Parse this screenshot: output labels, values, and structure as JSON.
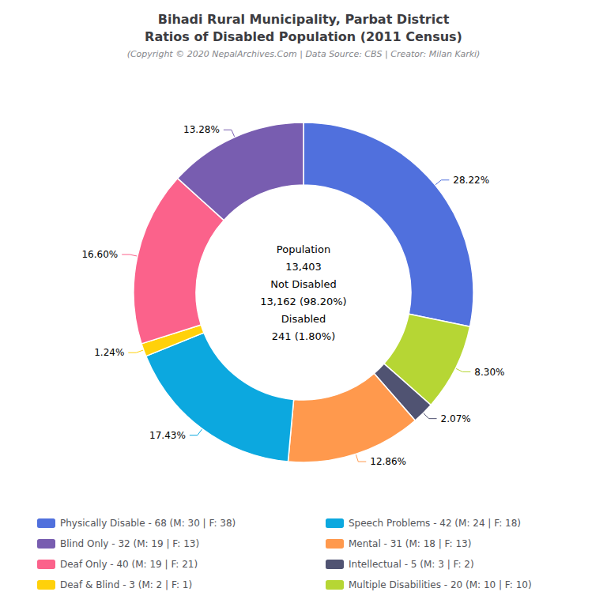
{
  "chart_data": {
    "type": "pie",
    "title": "Bihadi Rural Municipality, Parbat District\nRatios of Disabled Population (2011 Census)",
    "subtitle": "(Copyright © 2020 NepalArchives.Com | Data Source: CBS | Creator: Milan Karki)",
    "categories": [
      "Physically Disable - 68 (M: 30 | F: 38)",
      "Multiple Disabilities - 20 (M: 10 | F: 10)",
      "Intellectual - 5 (M: 3 | F: 2)",
      "Mental - 31 (M: 18 | F: 13)",
      "Speech Problems - 42 (M: 24 | F: 18)",
      "Deaf & Blind - 3 (M: 2 | F: 1)",
      "Deaf Only - 40 (M: 19 | F: 21)",
      "Blind Only - 32 (M: 19 | F: 13)"
    ],
    "values": [
      28.22,
      8.3,
      2.07,
      12.86,
      17.43,
      1.24,
      16.6,
      13.28
    ],
    "value_labels": [
      "28.22%",
      "8.30%",
      "2.07%",
      "12.86%",
      "17.43%",
      "1.24%",
      "16.60%",
      "13.28%"
    ],
    "data_labels": true,
    "legend": "bottom",
    "legend_entries": [
      "Physically Disable - 68 (M: 30 | F: 38)",
      "Blind Only - 32 (M: 19 | F: 13)",
      "Deaf Only - 40 (M: 19 | F: 21)",
      "Deaf & Blind - 3 (M: 2 | F: 1)",
      "Speech Problems - 42 (M: 24 | F: 18)",
      "Mental - 31 (M: 18 | F: 13)",
      "Intellectual - 5 (M: 3 | F: 2)",
      "Multiple Disabilities - 20 (M: 10 | F: 10)"
    ],
    "annotations": [
      "Population",
      "13,403",
      "Not Disabled",
      "13,162 (98.20%)",
      "Disabled",
      "241 (1.80%)"
    ]
  }
}
